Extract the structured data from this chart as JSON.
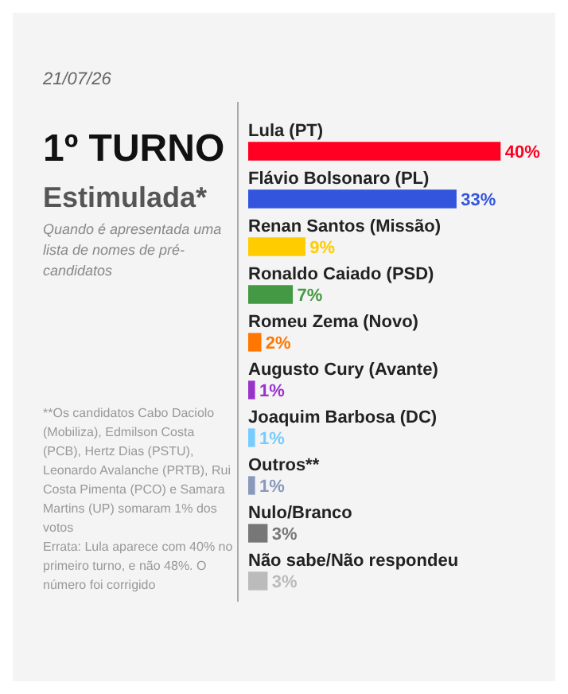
{
  "chart_data": {
    "type": "bar",
    "orientation": "horizontal",
    "title": "1º TURNO",
    "subtitle": "21/07/26",
    "xlabel": "Estimulada*",
    "annotations": [
      "Quando é apresentada uma lista de nomes de pré-candidatos",
      "**Os candidatos Cabo Daciolo (Mobiliza), Edmilson Costa (PCB), Hertz Dias (PSTU), Leonardo Avalanche (PRTB), Rui Costa Pimenta (PCO) e Samara Martins (UP) somaram 1% dos votos",
      "Errata: Lula aparece com 40% no primeiro turno, e não 48%. O número foi corrigido"
    ],
    "categories": [
      "Lula (PT)",
      "Flávio Bolsonaro (PL)",
      "Renan Santos (Missão)",
      "Ronaldo Caiado (PSD)",
      "Romeu Zema (Novo)",
      "Augusto Cury (Avante)",
      "Joaquim Barbosa (DC)",
      "Outros**",
      "Nulo/Branco",
      "Não sabe/Não respondeu"
    ],
    "values": [
      40,
      33,
      9,
      7,
      2,
      1,
      1,
      1,
      3,
      3
    ],
    "colors": [
      "#ff0022",
      "#3355dd",
      "#ffcc00",
      "#449944",
      "#ff7700",
      "#9933cc",
      "#77ccff",
      "#8899bb",
      "#777777",
      "#bbbbbb"
    ],
    "value_labels": [
      "40%",
      "33%",
      "9%",
      "7%",
      "2%",
      "1%",
      "1%",
      "1%",
      "3%",
      "3%"
    ]
  }
}
